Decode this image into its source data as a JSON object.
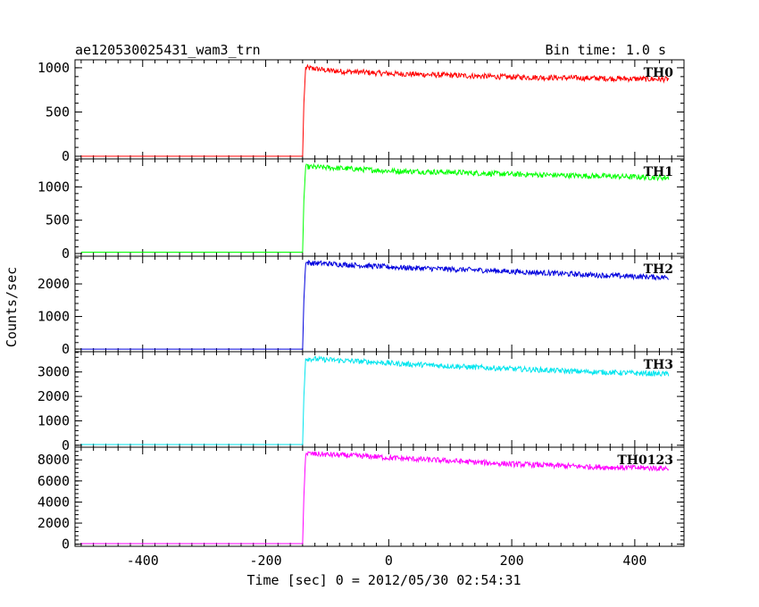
{
  "header": {
    "title": "ae120530025431_wam3_trn",
    "bin_time": "Bin time: 1.0 s"
  },
  "axes": {
    "xlabel": "Time [sec] 0 = 2012/05/30 02:54:31",
    "ylabel": "Counts/sec"
  },
  "chart_data": {
    "type": "line",
    "title": "ae120530025431_wam3_trn",
    "subtitle": "Bin time: 1.0 s",
    "xlabel": "Time [sec] 0 = 2012/05/30 02:54:31",
    "ylabel": "Counts/sec",
    "xlim": [
      -510,
      480
    ],
    "x_ticks": [
      -400,
      -200,
      0,
      200,
      400
    ],
    "grid": false,
    "panels": [
      {
        "name": "TH0",
        "color": "#ff0000",
        "ylim": [
          -30,
          1090
        ],
        "y_ticks": [
          0,
          500,
          1000
        ],
        "series": [
          {
            "name": "TH0",
            "x": [
              -500,
              -140,
              -138,
              -135,
              -120,
              -100,
              -80,
              -60,
              -40,
              -20,
              0,
              50,
              100,
              150,
              200,
              250,
              300,
              350,
              400,
              450,
              455
            ],
            "y": [
              0,
              0,
              600,
              1000,
              990,
              970,
              960,
              955,
              950,
              940,
              935,
              925,
              915,
              905,
              895,
              890,
              885,
              880,
              875,
              870,
              870
            ]
          }
        ]
      },
      {
        "name": "TH1",
        "color": "#00ff00",
        "ylim": [
          -40,
          1420
        ],
        "y_ticks": [
          0,
          500,
          1000
        ],
        "series": [
          {
            "name": "TH1",
            "x": [
              -500,
              -140,
              -138,
              -135,
              -100,
              -60,
              -20,
              0,
              50,
              100,
              150,
              200,
              250,
              300,
              350,
              400,
              450,
              455
            ],
            "y": [
              20,
              20,
              800,
              1300,
              1290,
              1270,
              1250,
              1240,
              1230,
              1220,
              1205,
              1190,
              1180,
              1170,
              1160,
              1150,
              1140,
              1140
            ]
          }
        ]
      },
      {
        "name": "TH2",
        "color": "#0000dd",
        "ylim": [
          -80,
          2850
        ],
        "y_ticks": [
          0,
          1000,
          2000
        ],
        "series": [
          {
            "name": "TH2",
            "x": [
              -500,
              -140,
              -138,
              -135,
              -100,
              -60,
              -20,
              0,
              50,
              100,
              150,
              200,
              250,
              300,
              350,
              400,
              450,
              455
            ],
            "y": [
              0,
              0,
              1500,
              2650,
              2620,
              2580,
              2540,
              2520,
              2480,
              2450,
              2420,
              2380,
              2340,
              2300,
              2260,
              2230,
              2200,
              2200
            ]
          }
        ]
      },
      {
        "name": "TH3",
        "color": "#00e5ee",
        "ylim": [
          -80,
          3830
        ],
        "y_ticks": [
          0,
          1000,
          2000,
          3000
        ],
        "series": [
          {
            "name": "TH3",
            "x": [
              -500,
              -140,
              -138,
              -135,
              -100,
              -60,
              -20,
              0,
              50,
              100,
              150,
              200,
              250,
              300,
              350,
              400,
              450,
              455
            ],
            "y": [
              30,
              30,
              2000,
              3550,
              3500,
              3450,
              3400,
              3360,
              3300,
              3240,
              3180,
              3130,
              3080,
              3030,
              2990,
              2950,
              2920,
              2920
            ]
          }
        ]
      },
      {
        "name": "TH0123",
        "color": "#ff00ff",
        "ylim": [
          -200,
          9200
        ],
        "y_ticks": [
          0,
          2000,
          4000,
          6000,
          8000
        ],
        "series": [
          {
            "name": "TH0123",
            "x": [
              -500,
              -140,
              -138,
              -135,
              -100,
              -60,
              -20,
              0,
              50,
              100,
              150,
              200,
              250,
              300,
              350,
              400,
              450,
              455
            ],
            "y": [
              50,
              50,
              4500,
              8600,
              8500,
              8400,
              8300,
              8200,
              8050,
              7900,
              7750,
              7600,
              7500,
              7400,
              7300,
              7250,
              7200,
              7200
            ]
          }
        ]
      }
    ]
  }
}
